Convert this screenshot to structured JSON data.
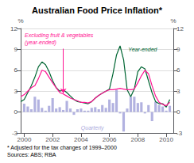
{
  "chart_data": {
    "type": "bar",
    "title": "Australian Food Price Inflation*",
    "annotations": [
      "* Adjusted for the tax changes of 1999–2000",
      "Sources: ABS; RBA"
    ],
    "ylabel": "%",
    "y2label": "%",
    "xlim": [
      1999.75,
      2010.5
    ],
    "xticks": [
      2000,
      2002,
      2004,
      2006,
      2008,
      2010
    ],
    "ylim": [
      -3,
      12
    ],
    "yticks": [
      -3,
      0,
      3,
      6,
      9,
      12
    ],
    "y2lim": [
      -3,
      12
    ],
    "y2ticks": [
      -3,
      0,
      3,
      6,
      9,
      12
    ],
    "grid": true,
    "series": [
      {
        "name": "Quarterly",
        "type": "bar",
        "color": "#aaaadd",
        "x": [
          2000.0,
          2000.25,
          2000.5,
          2000.75,
          2001.0,
          2001.25,
          2001.5,
          2001.75,
          2002.0,
          2002.25,
          2002.5,
          2002.75,
          2003.0,
          2003.25,
          2003.5,
          2003.75,
          2004.0,
          2004.25,
          2004.5,
          2004.75,
          2005.0,
          2005.25,
          2005.5,
          2005.75,
          2006.0,
          2006.25,
          2006.5,
          2006.75,
          2007.0,
          2007.25,
          2007.5,
          2007.75,
          2008.0,
          2008.25,
          2008.5,
          2008.75,
          2009.0,
          2009.25,
          2009.5,
          2009.75,
          2010.0,
          2010.25
        ],
        "values": [
          1.2,
          0.8,
          0.4,
          2.2,
          1.8,
          0.6,
          0.2,
          0.9,
          2.0,
          0.5,
          0.7,
          0.3,
          1.6,
          0.5,
          -0.4,
          0.4,
          0.5,
          0.2,
          0.2,
          0.6,
          0.7,
          0.4,
          1.0,
          0.6,
          1.8,
          1.3,
          3.2,
          -0.2,
          -2.8,
          0.5,
          2.2,
          2.2,
          1.3,
          1.4,
          -0.2,
          1.0,
          -1.3,
          1.5,
          1.0,
          0.8,
          0.2,
          0.9
        ]
      },
      {
        "name": "Year-ended",
        "type": "line",
        "color": "#006633",
        "x": [
          1999.75,
          2000.0,
          2000.25,
          2000.5,
          2000.75,
          2001.0,
          2001.25,
          2001.5,
          2001.75,
          2002.0,
          2002.25,
          2002.5,
          2002.75,
          2003.0,
          2003.25,
          2003.5,
          2003.75,
          2004.0,
          2004.25,
          2004.5,
          2004.75,
          2005.0,
          2005.25,
          2005.5,
          2005.75,
          2006.0,
          2006.25,
          2006.5,
          2006.75,
          2007.0,
          2007.25,
          2007.5,
          2007.75,
          2008.0,
          2008.25,
          2008.5,
          2008.75,
          2009.0,
          2009.25,
          2009.5,
          2009.75,
          2010.0,
          2010.25
        ],
        "values": [
          1.5,
          1.8,
          2.8,
          3.8,
          5.0,
          6.5,
          7.2,
          6.8,
          5.8,
          4.5,
          3.5,
          3.0,
          3.2,
          2.8,
          2.3,
          1.8,
          1.5,
          1.4,
          1.3,
          1.2,
          1.5,
          2.0,
          2.4,
          2.7,
          3.0,
          3.3,
          5.5,
          8.2,
          9.5,
          7.5,
          3.2,
          2.2,
          3.3,
          5.8,
          6.5,
          6.2,
          4.5,
          2.8,
          1.5,
          1.2,
          1.2,
          0.7,
          1.8
        ]
      },
      {
        "name": "Excluding fruit & vegetables\n(year-ended)",
        "type": "line",
        "color": "#ff1493",
        "x": [
          1999.75,
          2000.0,
          2000.25,
          2000.5,
          2000.75,
          2001.0,
          2001.25,
          2001.5,
          2001.75,
          2002.0,
          2002.25,
          2002.5,
          2002.75,
          2003.0,
          2003.25,
          2003.5,
          2003.75,
          2004.0,
          2004.25,
          2004.5,
          2004.75,
          2005.0,
          2005.25,
          2005.5,
          2005.75,
          2006.0,
          2006.25,
          2006.5,
          2006.75,
          2007.0,
          2007.25,
          2007.5,
          2007.75,
          2008.0,
          2008.25,
          2008.5,
          2008.75,
          2009.0,
          2009.25,
          2009.5,
          2009.75,
          2010.0,
          2010.25
        ],
        "values": [
          2.2,
          2.5,
          3.0,
          3.5,
          3.8,
          4.8,
          6.0,
          5.8,
          5.0,
          4.2,
          3.5,
          2.8,
          2.6,
          2.3,
          2.0,
          1.8,
          1.6,
          1.4,
          1.4,
          1.3,
          1.5,
          2.0,
          2.4,
          2.7,
          3.0,
          3.2,
          3.2,
          3.3,
          3.4,
          3.3,
          3.2,
          3.2,
          3.3,
          4.2,
          5.2,
          6.0,
          5.5,
          3.8,
          2.3,
          1.4,
          1.1,
          0.9,
          1.4
        ]
      }
    ]
  }
}
